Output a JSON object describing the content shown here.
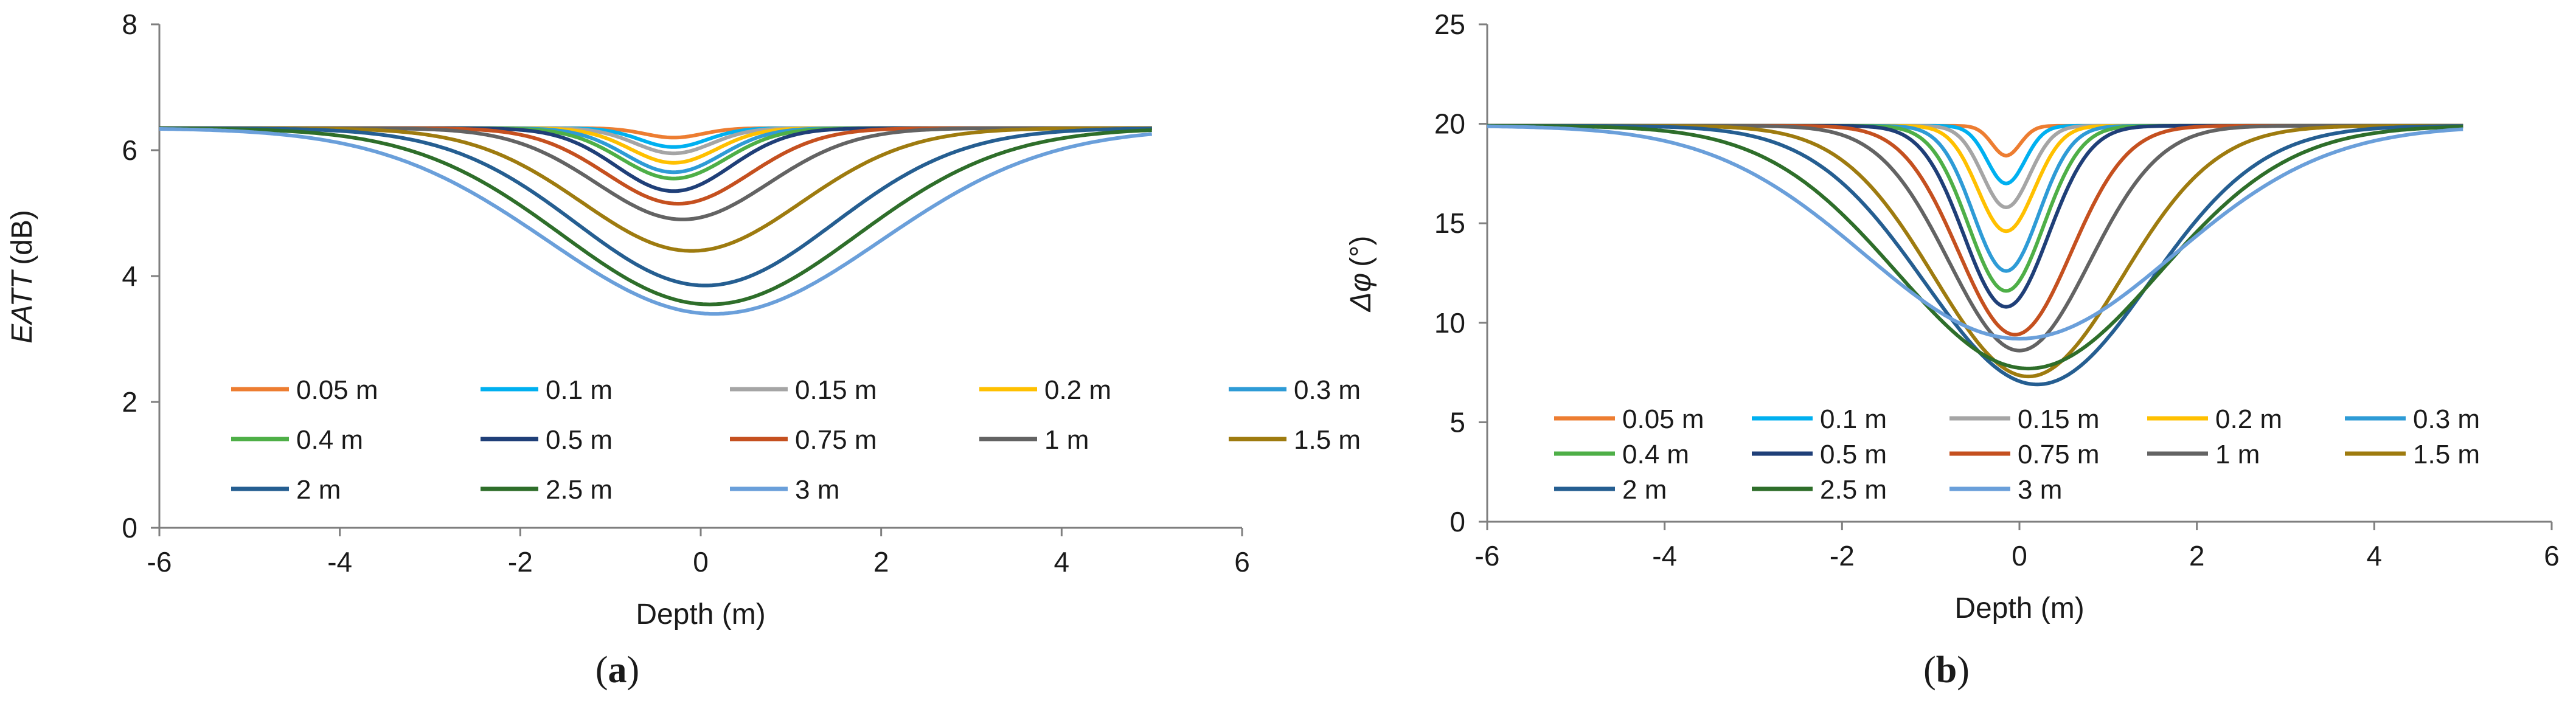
{
  "panels": [
    {
      "id": "a",
      "label": "a",
      "chart_data": {
        "type": "line",
        "title": "",
        "xlabel": "Depth (m)",
        "ylabel": "EATT",
        "ylabel_unit": "(dB)",
        "xlim": [
          -6,
          6
        ],
        "ylim": [
          0,
          8
        ],
        "xticks": [
          -6,
          -4,
          -2,
          0,
          2,
          4,
          6
        ],
        "yticks": [
          0,
          2,
          4,
          6,
          8
        ],
        "x_start": -6,
        "x_end": 5,
        "baseline": 6.35,
        "grid": false,
        "legend_position": "lower-left inside plot",
        "series": [
          {
            "name": "0.05 m",
            "color": "#ED7D31",
            "min": 6.2,
            "center": -0.3,
            "half_width": 0.3
          },
          {
            "name": "0.1 m",
            "color": "#00B0F0",
            "min": 6.05,
            "center": -0.3,
            "half_width": 0.35
          },
          {
            "name": "0.15 m",
            "color": "#A5A5A5",
            "min": 5.95,
            "center": -0.3,
            "half_width": 0.4
          },
          {
            "name": "0.2 m",
            "color": "#FFC000",
            "min": 5.8,
            "center": -0.3,
            "half_width": 0.45
          },
          {
            "name": "0.3 m",
            "color": "#2E9BD6",
            "min": 5.65,
            "center": -0.3,
            "half_width": 0.5
          },
          {
            "name": "0.4 m",
            "color": "#4EAF47",
            "min": 5.55,
            "center": -0.3,
            "half_width": 0.55
          },
          {
            "name": "0.5 m",
            "color": "#1F3F78",
            "min": 5.35,
            "center": -0.3,
            "half_width": 0.6
          },
          {
            "name": "0.75 m",
            "color": "#C5501F",
            "min": 5.15,
            "center": -0.25,
            "half_width": 0.75
          },
          {
            "name": "1 m",
            "color": "#636363",
            "min": 4.9,
            "center": -0.2,
            "half_width": 0.9
          },
          {
            "name": "1.5 m",
            "color": "#9E7B0F",
            "min": 4.4,
            "center": -0.1,
            "half_width": 1.15
          },
          {
            "name": "2 m",
            "color": "#255E91",
            "min": 3.85,
            "center": 0.05,
            "half_width": 1.35
          },
          {
            "name": "2.5 m",
            "color": "#2E6E2A",
            "min": 3.55,
            "center": 0.1,
            "half_width": 1.55
          },
          {
            "name": "3 m",
            "color": "#6A9FDA",
            "min": 3.4,
            "center": 0.15,
            "half_width": 1.75
          }
        ]
      }
    },
    {
      "id": "b",
      "label": "b",
      "chart_data": {
        "type": "line",
        "title": "",
        "xlabel": "Depth (m)",
        "ylabel": "Δφ",
        "ylabel_unit": "(°)",
        "xlim": [
          -6,
          6
        ],
        "ylim": [
          0,
          25
        ],
        "xticks": [
          -6,
          -4,
          -2,
          0,
          2,
          4,
          6
        ],
        "yticks": [
          0,
          5,
          10,
          15,
          20,
          25
        ],
        "x_start": -6,
        "x_end": 5,
        "baseline": 19.9,
        "grid": false,
        "legend_position": "bottom inside plot",
        "series": [
          {
            "name": "0.05 m",
            "color": "#ED7D31",
            "min": 18.4,
            "center": -0.15,
            "half_width": 0.15
          },
          {
            "name": "0.1 m",
            "color": "#00B0F0",
            "min": 17.0,
            "center": -0.15,
            "half_width": 0.2
          },
          {
            "name": "0.15 m",
            "color": "#A5A5A5",
            "min": 15.8,
            "center": -0.15,
            "half_width": 0.25
          },
          {
            "name": "0.2 m",
            "color": "#FFC000",
            "min": 14.6,
            "center": -0.15,
            "half_width": 0.3
          },
          {
            "name": "0.3 m",
            "color": "#2E9BD6",
            "min": 12.6,
            "center": -0.15,
            "half_width": 0.35
          },
          {
            "name": "0.4 m",
            "color": "#4EAF47",
            "min": 11.6,
            "center": -0.15,
            "half_width": 0.4
          },
          {
            "name": "0.5 m",
            "color": "#1F3F78",
            "min": 10.8,
            "center": -0.15,
            "half_width": 0.45
          },
          {
            "name": "0.75 m",
            "color": "#C5501F",
            "min": 9.4,
            "center": -0.05,
            "half_width": 0.6
          },
          {
            "name": "1 m",
            "color": "#636363",
            "min": 8.6,
            "center": 0.0,
            "half_width": 0.75
          },
          {
            "name": "1.5 m",
            "color": "#9E7B0F",
            "min": 7.3,
            "center": 0.1,
            "half_width": 1.0
          },
          {
            "name": "2 m",
            "color": "#255E91",
            "min": 6.9,
            "center": 0.2,
            "half_width": 1.2
          },
          {
            "name": "2.5 m",
            "color": "#2E6E2A",
            "min": 7.7,
            "center": 0.1,
            "half_width": 1.4
          },
          {
            "name": "3 m",
            "color": "#6A9FDA",
            "min": 9.2,
            "center": 0.0,
            "half_width": 1.65
          }
        ]
      }
    }
  ]
}
